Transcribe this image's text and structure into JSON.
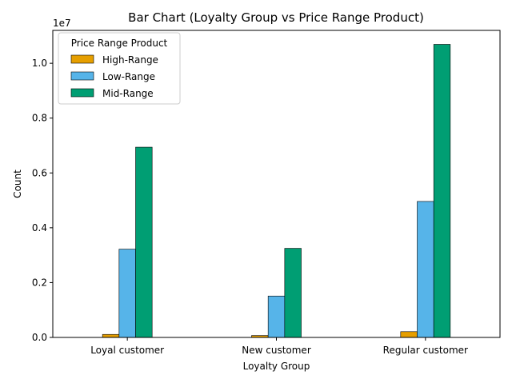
{
  "chart_data": {
    "type": "bar",
    "title": "Bar Chart (Loyalty Group vs Price Range Product)",
    "xlabel": "Loyalty Group",
    "ylabel": "Count",
    "y_offset_label": "1e7",
    "categories": [
      "Loyal customer",
      "New customer",
      "Regular customer"
    ],
    "series": [
      {
        "name": "High-Range",
        "color": "#E69F00",
        "values": [
          110000,
          70000,
          210000
        ]
      },
      {
        "name": "Low-Range",
        "color": "#56B4E9",
        "values": [
          3220000,
          1510000,
          4960000
        ]
      },
      {
        "name": "Mid-Range",
        "color": "#009E73",
        "values": [
          6940000,
          3250000,
          10690000
        ]
      }
    ],
    "ylim": [
      0,
      11200000
    ],
    "yticks": [
      0,
      2000000,
      4000000,
      6000000,
      8000000,
      10000000
    ],
    "ytick_labels": [
      "0.0",
      "0.2",
      "0.4",
      "0.6",
      "0.8",
      "1.0"
    ],
    "legend": {
      "title": "Price Range Product",
      "placement": "upper-left"
    },
    "grid": false
  }
}
